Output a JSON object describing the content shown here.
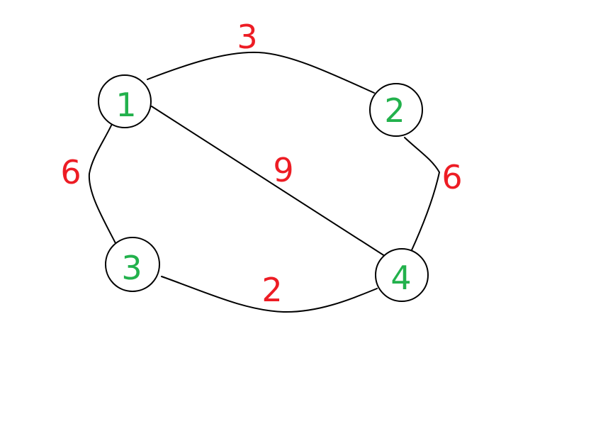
{
  "colors": {
    "background": "#ffffff",
    "edge": "#000000",
    "node_outline": "#000000",
    "node_label": "#22b14c",
    "weight_label": "#ed1c24"
  },
  "graph": {
    "nodes": [
      {
        "id": "1",
        "label": "1"
      },
      {
        "id": "2",
        "label": "2"
      },
      {
        "id": "3",
        "label": "3"
      },
      {
        "id": "4",
        "label": "4"
      }
    ],
    "edges": [
      {
        "from": "1",
        "to": "2",
        "weight": "3"
      },
      {
        "from": "2",
        "to": "4",
        "weight": "6"
      },
      {
        "from": "1",
        "to": "3",
        "weight": "6"
      },
      {
        "from": "3",
        "to": "4",
        "weight": "2"
      },
      {
        "from": "1",
        "to": "4",
        "weight": "9"
      }
    ]
  }
}
